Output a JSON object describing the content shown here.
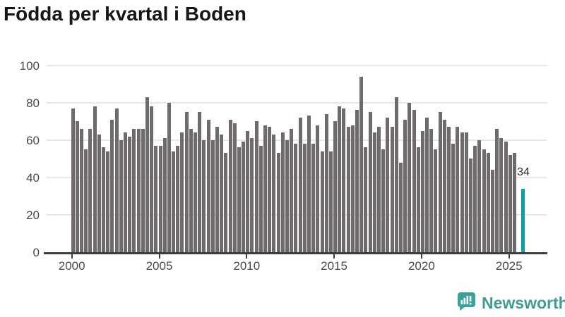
{
  "title": "Födda per kvartal i Boden",
  "chart_data": {
    "type": "bar",
    "title": "Födda per kvartal i Boden",
    "start_quarter": "2000 Q1",
    "frequency": "quarterly",
    "ylim": [
      0,
      100
    ],
    "y_ticks": [
      0,
      20,
      40,
      60,
      80,
      100
    ],
    "x_tick_labels": [
      "2000",
      "2005",
      "2010",
      "2015",
      "2020",
      "2025"
    ],
    "grid": "horizontal",
    "values": [
      77,
      70,
      66,
      55,
      66,
      78,
      63,
      56,
      54,
      71,
      77,
      60,
      64,
      62,
      66,
      66,
      66,
      83,
      78,
      57,
      57,
      61,
      80,
      54,
      57,
      64,
      75,
      66,
      64,
      75,
      60,
      71,
      60,
      67,
      63,
      53,
      71,
      69,
      56,
      59,
      65,
      61,
      70,
      57,
      68,
      67,
      63,
      53,
      64,
      60,
      66,
      58,
      72,
      58,
      73,
      58,
      68,
      54,
      74,
      54,
      70,
      78,
      77,
      67,
      68,
      76,
      94,
      56,
      75,
      64,
      67,
      55,
      72,
      67,
      83,
      48,
      71,
      80,
      76,
      56,
      65,
      72,
      66,
      55,
      75,
      71,
      67,
      58,
      67,
      64,
      64,
      50,
      57,
      60,
      55,
      53,
      44,
      66,
      61,
      59,
      52,
      53
    ],
    "highlight": {
      "value": 34,
      "label": "34"
    },
    "colors": {
      "bar": "#6e6a6e",
      "highlight_bar": "#0b9fa4"
    }
  },
  "logo": {
    "text": "Newsworthy",
    "color": "#3e9d98",
    "icon": "bar-chart-speech-bubble-icon"
  }
}
